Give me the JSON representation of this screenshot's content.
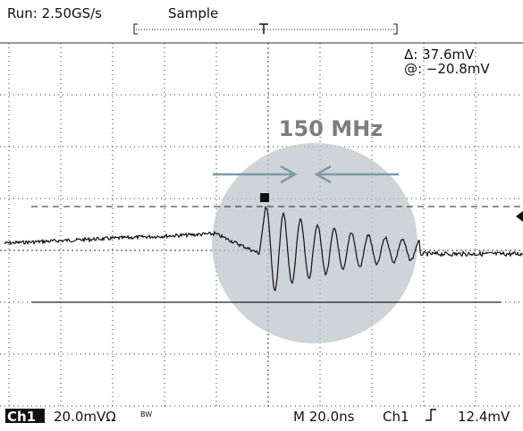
{
  "header": {
    "acquisition": "Run: 2.50GS/s",
    "mode": "Sample"
  },
  "cursor": {
    "delta": "Δ: 37.6mV",
    "at": "@: −20.8mV"
  },
  "annotation": "150 MHz",
  "footer": {
    "channel": "Ch1",
    "scale": "20.0mVΩ",
    "bandwidth": "BW",
    "timebase": "M 20.0ns",
    "trigger_source": "Ch1",
    "trigger_level": "12.4mV"
  }
}
